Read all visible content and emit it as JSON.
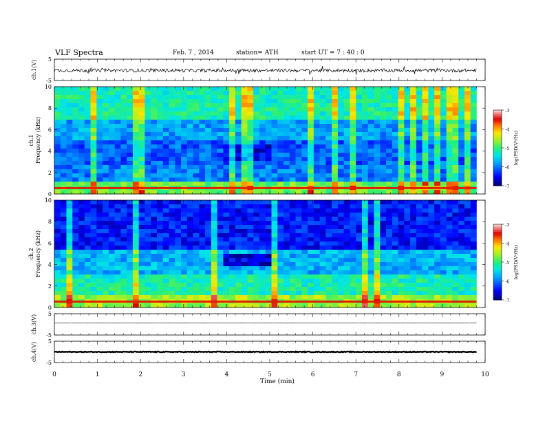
{
  "header": {
    "title": "VLF  Spectra",
    "date": "Feb. 7  , 2014",
    "station": "station= ATH",
    "start": "start  UT  =   7  : 40 : 0"
  },
  "chart_data": [
    {
      "type": "line",
      "ylabel": "ch.1(V)",
      "ylim": [
        -5,
        5
      ],
      "yticks": [
        "5",
        "-5"
      ],
      "description_level": -0.3
    },
    {
      "type": "heatmap",
      "ylabel": "ch.1",
      "ylabel2": "Frequency  (kHz)",
      "ylim": [
        0,
        10
      ],
      "yticks": [
        "0",
        "2",
        "4",
        "6",
        "8",
        "10"
      ],
      "colorbar": {
        "label": "log(PSD(V²/Hz)",
        "ticks": [
          "-3",
          "-4",
          "-5",
          "-6",
          "-7"
        ],
        "range": [
          -7,
          -3
        ]
      }
    },
    {
      "type": "heatmap",
      "ylabel": "ch.2",
      "ylabel2": "Frequency  (kHz)",
      "ylim": [
        0,
        10
      ],
      "yticks": [
        "0",
        "2",
        "4",
        "6",
        "8",
        "10"
      ],
      "colorbar": {
        "label": "log(PSD(V²/Hz)",
        "ticks": [
          "-3",
          "-4",
          "-5",
          "-6",
          "-7"
        ],
        "range": [
          -7,
          -3
        ]
      }
    },
    {
      "type": "line",
      "ylabel": "ch.3(V)",
      "ylim": [
        -5,
        5
      ],
      "yticks": [
        "5",
        "-5"
      ]
    },
    {
      "type": "line",
      "ylabel": "ch.4(V)",
      "ylim": [
        -5,
        5
      ],
      "yticks": [
        "5",
        "-5"
      ]
    }
  ],
  "xaxis": {
    "label": "Time  (min)",
    "range": [
      0,
      10
    ],
    "ticks": [
      "0",
      "1",
      "2",
      "3",
      "4",
      "5",
      "6",
      "7",
      "8",
      "9",
      "10"
    ],
    "data_end": 9.8
  }
}
